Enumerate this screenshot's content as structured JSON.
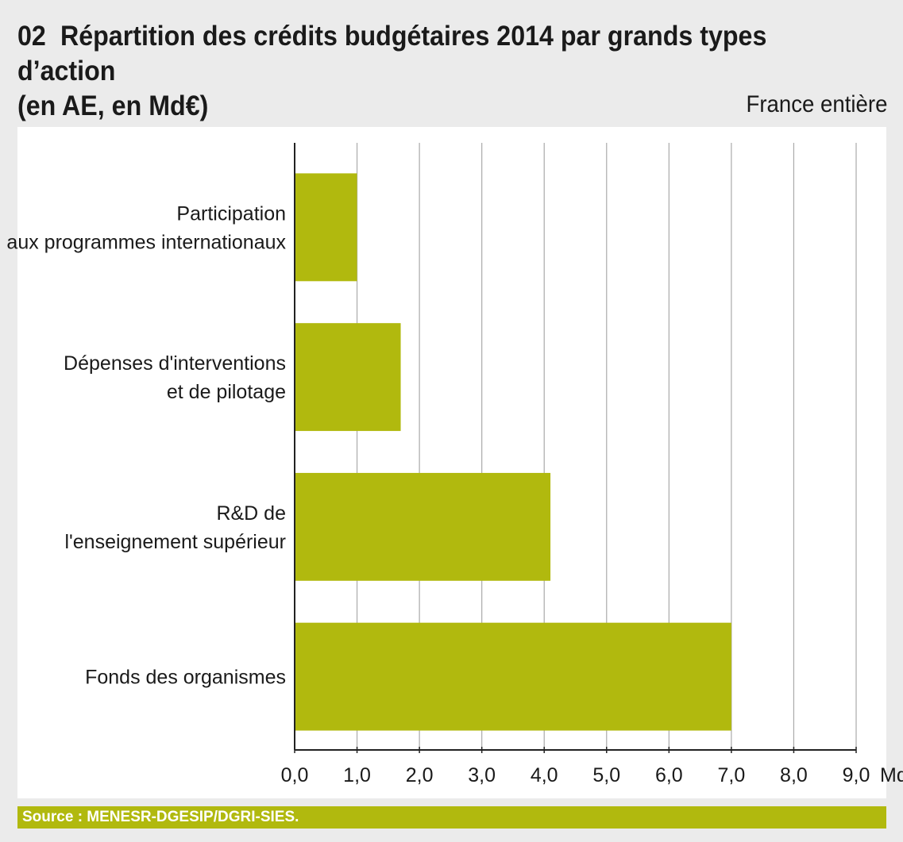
{
  "header": {
    "number": "02",
    "title_line1": "Répartition des crédits budgétaires 2014 par grands types d’action",
    "title_line2": "(en AE, en Md€)",
    "subtitle": "France entière"
  },
  "source": "Source : MENESR-DGESIP/DGRI-SIES.",
  "colors": {
    "bar": "#b1b90e",
    "grid": "#aaaaaa",
    "axis": "#222222"
  },
  "chart_data": {
    "type": "bar",
    "orientation": "horizontal",
    "categories": [
      [
        "Participation",
        "aux programmes internationaux"
      ],
      [
        "Dépenses d'interventions",
        "et de pilotage"
      ],
      [
        "R&D de",
        "l'enseignement supérieur"
      ],
      [
        "Fonds des organismes"
      ]
    ],
    "values": [
      1.0,
      1.7,
      4.1,
      7.0
    ],
    "xlim": [
      0,
      9
    ],
    "xticks": [
      "0,0",
      "1,0",
      "2,0",
      "3,0",
      "4,0",
      "5,0",
      "6,0",
      "7,0",
      "8,0",
      "9,0"
    ],
    "unit": "Md€",
    "grid": true
  }
}
